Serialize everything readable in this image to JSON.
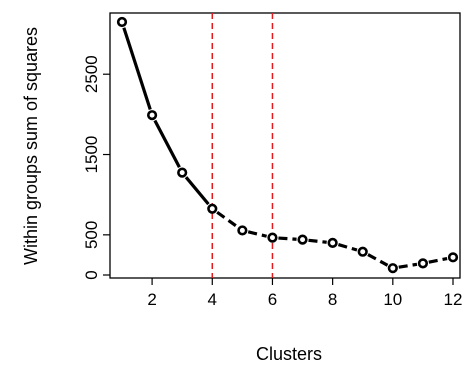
{
  "chart_data": {
    "type": "line",
    "title": "",
    "xlabel": "Clusters",
    "ylabel": "Within groups sum of squares",
    "x": [
      1,
      2,
      3,
      4,
      5,
      6,
      7,
      8,
      9,
      10,
      11,
      12
    ],
    "values": [
      3150,
      1990,
      1275,
      825,
      555,
      465,
      440,
      400,
      290,
      85,
      145,
      220
    ],
    "xlim": [
      1,
      12
    ],
    "ylim": [
      0,
      3150
    ],
    "xticks": [
      2,
      4,
      6,
      8,
      10,
      12
    ],
    "yticks": [
      0,
      500,
      1500,
      2500
    ],
    "reference_lines_x": [
      4,
      6
    ],
    "line_style": "solid-then-dashed",
    "marker": "open-circle",
    "grid": false,
    "colors": {
      "line": "#000000",
      "reference_lines": "#e41a1c"
    }
  }
}
